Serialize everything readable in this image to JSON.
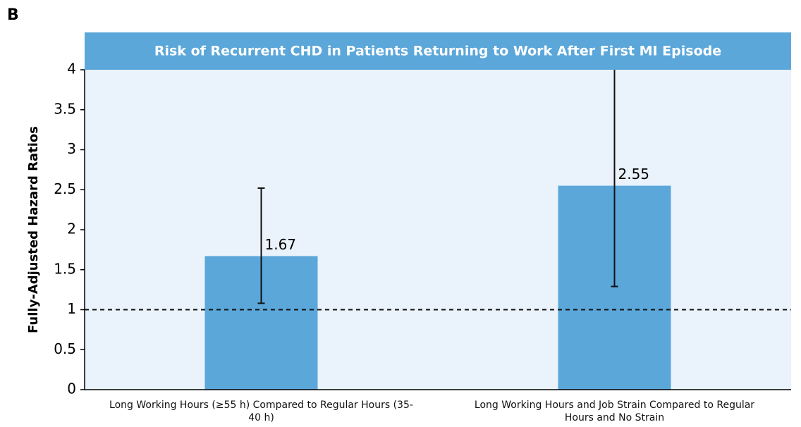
{
  "panel_label": "B",
  "chart_data": {
    "type": "bar",
    "title": "Risk of Recurrent CHD in Patients Returning to Work After First MI Episode",
    "y_label": "Fully-Adjusted Hazard Ratios",
    "categories": [
      "Long Working Hours (≥55 h) Compared to Regular Hours (35-40 h)",
      "Long Working Hours and Job Strain Compared to Regular Hours and No Strain"
    ],
    "values": [
      1.67,
      2.55
    ],
    "error_low": [
      1.08,
      1.29
    ],
    "error_high": [
      2.52,
      4.5
    ],
    "color": "#5ba7da",
    "reference_line": 1,
    "ylim": [
      0,
      4
    ],
    "yticks": [
      0,
      0.5,
      1,
      1.5,
      2,
      2.5,
      3,
      3.5,
      4
    ]
  }
}
